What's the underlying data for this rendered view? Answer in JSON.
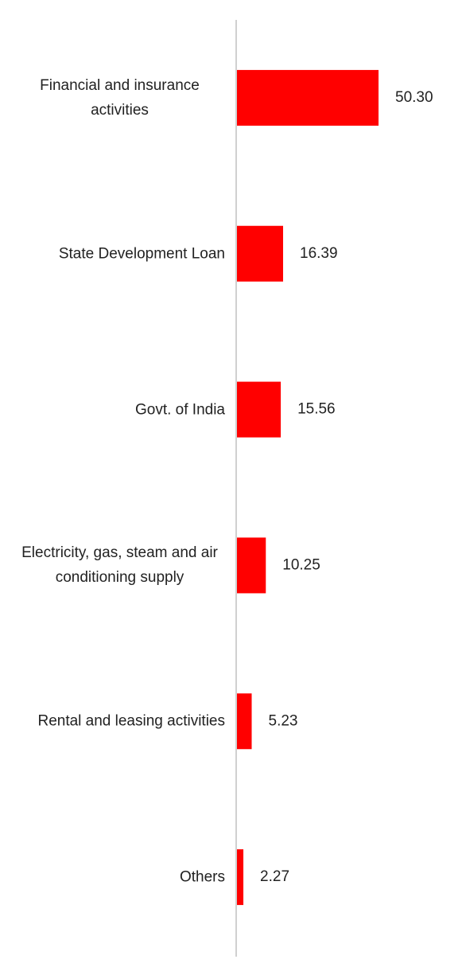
{
  "chart_data": {
    "type": "barh",
    "categories": [
      "Financial and insurance activities",
      "State Development Loan",
      "Govt. of India",
      "Electricity, gas, steam and air conditioning supply",
      "Rental and leasing activities",
      "Others"
    ],
    "values": [
      50.3,
      16.39,
      15.56,
      10.25,
      5.23,
      2.27
    ],
    "value_labels": [
      "50.30",
      "16.39",
      "15.56",
      "10.25",
      "5.23",
      "2.27"
    ],
    "color": "#ff0000"
  }
}
